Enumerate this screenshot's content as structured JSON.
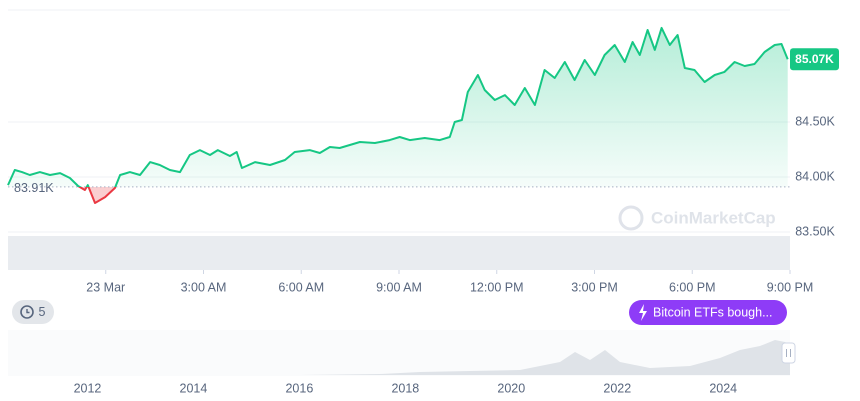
{
  "chart_data": {
    "type": "line",
    "x": [
      -3,
      -2.79,
      -2.57,
      -2.33,
      -2.02,
      -1.71,
      -1.4,
      -1.1,
      -0.85,
      -0.64,
      -0.55,
      -0.33,
      -0.02,
      0.28,
      0.44,
      0.74,
      1.05,
      1.36,
      1.66,
      1.97,
      2.28,
      2.58,
      2.89,
      3.2,
      3.44,
      3.81,
      4.02,
      4.18,
      4.58,
      5.04,
      5.5,
      5.8,
      6.26,
      6.57,
      6.88,
      7.18,
      7.49,
      7.8,
      8.26,
      8.71,
      9.02,
      9.33,
      9.79,
      10.25,
      10.56,
      10.71,
      10.93,
      11.11,
      11.42,
      11.63,
      11.94,
      12.25,
      12.55,
      12.86,
      13.17,
      13.47,
      13.78,
      14.09,
      14.39,
      14.7,
      15.01,
      15.31,
      15.62,
      15.93,
      16.17,
      16.39,
      16.63,
      16.85,
      17.06,
      17.31,
      17.55,
      17.77,
      18.07,
      18.38,
      18.69,
      18.99,
      19.3,
      19.61,
      19.91,
      20.22,
      20.53,
      20.74,
      20.93
    ],
    "values": [
      83927,
      84064,
      84045,
      84018,
      84045,
      84018,
      84036,
      83991,
      83918,
      83882,
      83927,
      83764,
      83818,
      83900,
      84018,
      84045,
      84018,
      84136,
      84109,
      84064,
      84045,
      84200,
      84245,
      84200,
      84245,
      84191,
      84227,
      84082,
      84136,
      84109,
      84155,
      84227,
      84245,
      84218,
      84273,
      84264,
      84291,
      84318,
      84309,
      84336,
      84364,
      84336,
      84355,
      84336,
      84364,
      84500,
      84518,
      84773,
      84927,
      84791,
      84700,
      84745,
      84655,
      84809,
      84655,
      84973,
      84900,
      85045,
      84882,
      85064,
      84927,
      85109,
      85200,
      85045,
      85227,
      85109,
      85336,
      85155,
      85355,
      85200,
      85291,
      84991,
      84973,
      84864,
      84927,
      84955,
      85045,
      85009,
      85027,
      85136,
      85200,
      85209,
      85070
    ],
    "up_color": "#16c784",
    "down_color": "#ea3943",
    "xlim": [
      -3,
      21
    ],
    "xticks": [
      {
        "value": 0,
        "label": "23 Mar"
      },
      {
        "value": 3,
        "label": "3:00 AM"
      },
      {
        "value": 6,
        "label": "6:00 AM"
      },
      {
        "value": 9,
        "label": "9:00 AM"
      },
      {
        "value": 12,
        "label": "12:00 PM"
      },
      {
        "value": 15,
        "label": "3:00 PM"
      },
      {
        "value": 18,
        "label": "6:00 PM"
      },
      {
        "value": 21,
        "label": "9:00 PM"
      }
    ],
    "ylim": [
      83155,
      85518
    ],
    "yticks": [
      {
        "value": 83500,
        "label": "83.50K"
      },
      {
        "value": 84000,
        "label": "84.00K"
      },
      {
        "value": 84500,
        "label": "84.50K"
      }
    ],
    "grid": true,
    "baseline": {
      "value": 83910,
      "label": "83.91K"
    },
    "last_price": {
      "value": 85070,
      "label": "85.07K"
    }
  },
  "navigator": {
    "xlim": [
      2010.5,
      2025.26
    ],
    "xticks": [
      2012,
      2014,
      2016,
      2018,
      2020,
      2022,
      2024
    ]
  },
  "ui": {
    "watermark": "CoinMarketCap",
    "annotation": "Bitcoin ETFs bough...",
    "badge": 5
  }
}
